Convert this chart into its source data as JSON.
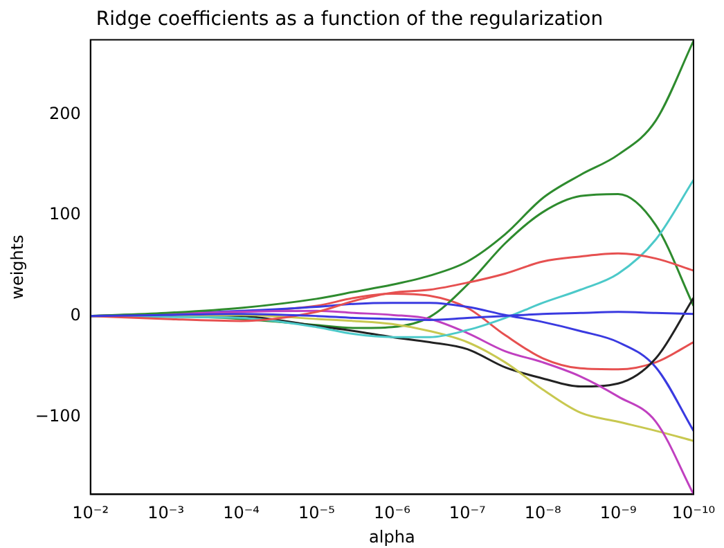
{
  "chart_data": {
    "type": "line",
    "title": "Ridge coefficients as a function of the regularization",
    "xlabel": "alpha",
    "ylabel": "weights",
    "x": [
      0.01,
      0.001,
      0.0001,
      1e-05,
      3.16e-06,
      1e-06,
      3.16e-07,
      1e-07,
      3.16e-08,
      1e-08,
      3.16e-09,
      1e-09,
      3.16e-10,
      1e-10
    ],
    "series": [
      {
        "color": "#3a3ae0",
        "values": [
          0,
          1,
          2,
          0,
          -2,
          -3,
          -4,
          -2,
          0,
          2,
          3,
          4,
          3,
          2
        ]
      },
      {
        "color": "#2e8b2e",
        "values": [
          0,
          3,
          8,
          17,
          24,
          31,
          40,
          54,
          81,
          117,
          140,
          160,
          194,
          273
        ]
      },
      {
        "color": "#e65050",
        "values": [
          0,
          -3,
          -5,
          4,
          15,
          23,
          26,
          33,
          42,
          54,
          59,
          62,
          57,
          45
        ]
      },
      {
        "color": "#4cc9c9",
        "values": [
          0,
          -1,
          -2,
          -11,
          -18,
          -21,
          -21,
          -14,
          -2,
          13,
          26,
          42,
          76,
          135
        ]
      },
      {
        "color": "#c040c0",
        "values": [
          0,
          2,
          4,
          5,
          3,
          1,
          -3,
          -17,
          -35,
          -46,
          -60,
          -80,
          -105,
          -177
        ]
      },
      {
        "color": "#c8c850",
        "values": [
          0,
          0,
          1,
          -3,
          -5,
          -8,
          -15,
          -26,
          -46,
          -73,
          -96,
          -105,
          -114,
          -124
        ]
      },
      {
        "color": "#222222",
        "values": [
          0,
          1,
          0,
          -10,
          -15,
          -21,
          -26,
          -33,
          -51,
          -62,
          -70,
          -67,
          -42,
          18
        ]
      },
      {
        "color": "#3a3ae0",
        "values": [
          0,
          2,
          5,
          9,
          12,
          13,
          13,
          9,
          1,
          -6,
          -15,
          -26,
          -51,
          -114
        ]
      },
      {
        "color": "#2e8b2e",
        "values": [
          0,
          0,
          -3,
          -9,
          -12,
          -11,
          -1,
          31,
          72,
          103,
          119,
          121,
          90,
          10
        ]
      },
      {
        "color": "#e65050",
        "values": [
          0,
          1,
          4,
          10,
          18,
          22,
          20,
          8,
          -19,
          -42,
          -52,
          -53,
          -46,
          -26
        ]
      }
    ],
    "log": "x",
    "xlim": [
      0.01,
      1e-10
    ],
    "xticks": [
      {
        "value": 0.01,
        "label": "10⁻²"
      },
      {
        "value": 0.001,
        "label": "10⁻³"
      },
      {
        "value": 0.0001,
        "label": "10⁻⁴"
      },
      {
        "value": 1e-05,
        "label": "10⁻⁵"
      },
      {
        "value": 1e-06,
        "label": "10⁻⁶"
      },
      {
        "value": 1e-07,
        "label": "10⁻⁷"
      },
      {
        "value": 1e-08,
        "label": "10⁻⁸"
      },
      {
        "value": 1e-09,
        "label": "10⁻⁹"
      },
      {
        "value": 1e-10,
        "label": "10⁻¹⁰"
      }
    ],
    "ylim": [
      -177,
      274
    ],
    "yticks": [
      {
        "value": -100,
        "label": "−100"
      },
      0,
      100,
      200
    ],
    "grid": false,
    "legend": false,
    "marker": "none",
    "line_style": "solid"
  }
}
